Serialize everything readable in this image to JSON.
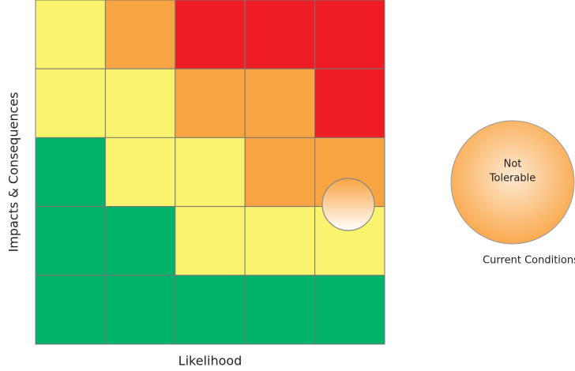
{
  "x_axis_label": "Likelihood",
  "y_axis_label": "Impacts & Consequences",
  "colors": {
    "green": "#00b26a",
    "yellow": "#f9f36e",
    "orange": "#f9a443",
    "red": "#ee1c24"
  },
  "grid": [
    [
      "yellow",
      "orange",
      "red",
      "red",
      "red"
    ],
    [
      "yellow",
      "yellow",
      "orange",
      "orange",
      "red"
    ],
    [
      "green",
      "yellow",
      "yellow",
      "orange",
      "orange"
    ],
    [
      "green",
      "green",
      "yellow",
      "yellow",
      "yellow"
    ],
    [
      "green",
      "green",
      "green",
      "green",
      "green"
    ]
  ],
  "legend": {
    "label_line1": "Not",
    "label_line2": "Tolerable",
    "caption": "Current Conditions"
  }
}
